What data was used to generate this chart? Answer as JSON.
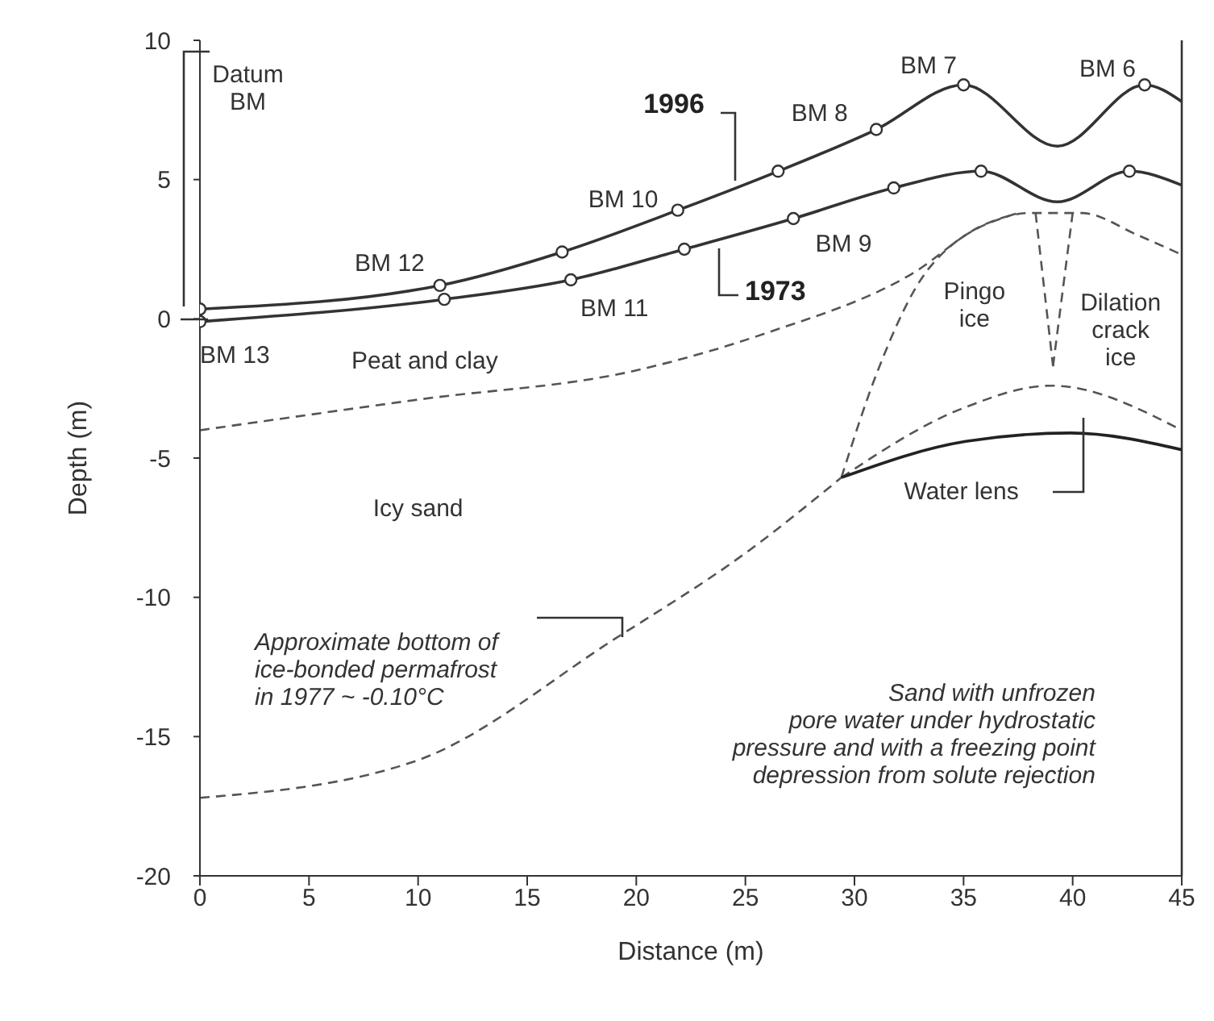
{
  "chart_data": {
    "type": "line",
    "xlabel": "Distance (m)",
    "ylabel": "Depth (m)",
    "xlim": [
      0,
      45
    ],
    "xticks": [
      0,
      5,
      10,
      15,
      20,
      25,
      30,
      35,
      40,
      45
    ],
    "ylim": [
      -20,
      10
    ],
    "yticks": [
      -20,
      -15,
      -10,
      -5,
      0,
      5,
      10
    ],
    "grid": false,
    "legend": false,
    "series": [
      {
        "name": "1996",
        "color": "#333333",
        "marker": "none",
        "line_style": "solid",
        "x": [
          0,
          11,
          16.6,
          21.9,
          26.5,
          31,
          35,
          39.3,
          43.3,
          45
        ],
        "values": [
          0.35,
          1.2,
          2.4,
          3.9,
          5.3,
          6.8,
          8.4,
          6.2,
          8.4,
          7.8
        ]
      },
      {
        "name": "1973",
        "color": "#333333",
        "marker": "none",
        "line_style": "solid",
        "x": [
          0,
          11.2,
          17,
          22.2,
          27.2,
          31.8,
          35.8,
          39.3,
          42.6,
          45
        ],
        "values": [
          -0.1,
          0.7,
          1.4,
          2.5,
          3.6,
          4.7,
          5.3,
          4.2,
          5.3,
          4.8
        ]
      },
      {
        "type": "scatter",
        "color": "#333333",
        "marker": "circle",
        "x": [
          0,
          11,
          16.6,
          21.9,
          26.5,
          31,
          35,
          43.3
        ],
        "values": [
          0.35,
          1.2,
          2.4,
          3.9,
          5.3,
          6.8,
          8.4,
          8.4
        ]
      },
      {
        "type": "scatter",
        "color": "#333333",
        "marker": "circle",
        "x": [
          0,
          11.2,
          17,
          22.2,
          27.2,
          31.8,
          35.8,
          42.6
        ],
        "values": [
          -0.1,
          0.7,
          1.4,
          2.5,
          3.6,
          4.7,
          5.3,
          5.3
        ]
      },
      {
        "color": "#555555",
        "marker": "none",
        "line_style": "dashed",
        "x": [
          0,
          10,
          20,
          26,
          32.6,
          36,
          38,
          40.4,
          43,
          45
        ],
        "values": [
          -4,
          -2.9,
          -1.85,
          -0.5,
          1.6,
          3.4,
          3.8,
          3.8,
          3.0,
          2.3
        ]
      },
      {
        "color": "#555555",
        "marker": "none",
        "line_style": "dashed",
        "x": [
          29.4,
          31,
          33.4,
          37.5
        ],
        "values": [
          -5.7,
          -2,
          1.8,
          3.8
        ]
      },
      {
        "color": "#555555",
        "marker": "none",
        "line_style": "dashed",
        "x": [
          38.3,
          39.1
        ],
        "values": [
          3.8,
          -1.7
        ]
      },
      {
        "color": "#555555",
        "marker": "none",
        "line_style": "dashed",
        "x": [
          39.1,
          40
        ],
        "values": [
          -1.7,
          3.8
        ]
      },
      {
        "color": "#555555",
        "marker": "none",
        "line_style": "dashed",
        "x": [
          0,
          9.8,
          19,
          25.2,
          29.4
        ],
        "values": [
          -17.2,
          -15.9,
          -11.5,
          -8.3,
          -5.7
        ]
      },
      {
        "color": "#555555",
        "marker": "none",
        "line_style": "dashed",
        "x": [
          29.4,
          35,
          39,
          45
        ],
        "values": [
          -5.7,
          -3.2,
          -2.4,
          -4.0
        ]
      },
      {
        "color": "#222222",
        "marker": "none",
        "line_style": "solid",
        "x": [
          29.4,
          35.1,
          39.9,
          45
        ],
        "values": [
          -5.7,
          -4.4,
          -4.1,
          -4.7
        ]
      }
    ],
    "ref_lines": [
      {
        "axis": "x",
        "value": 45,
        "color": "#333333"
      }
    ],
    "annotations": [
      "Datum\nBM",
      "BM 13",
      "BM 12",
      "BM 11",
      "BM 10",
      "BM 9",
      "BM 8",
      "BM 7",
      "BM 6",
      "Peat and clay",
      "Icy sand",
      "Pingo\nice",
      "Dilation\ncrack\nice",
      "Water lens",
      "Approximate bottom of\nice-bonded permafrost\nin 1977  ~  -0.10°C",
      "Sand with unfrozen\npore water under hydrostatic\npressure and with a freezing point\ndepression from solute rejection"
    ]
  }
}
